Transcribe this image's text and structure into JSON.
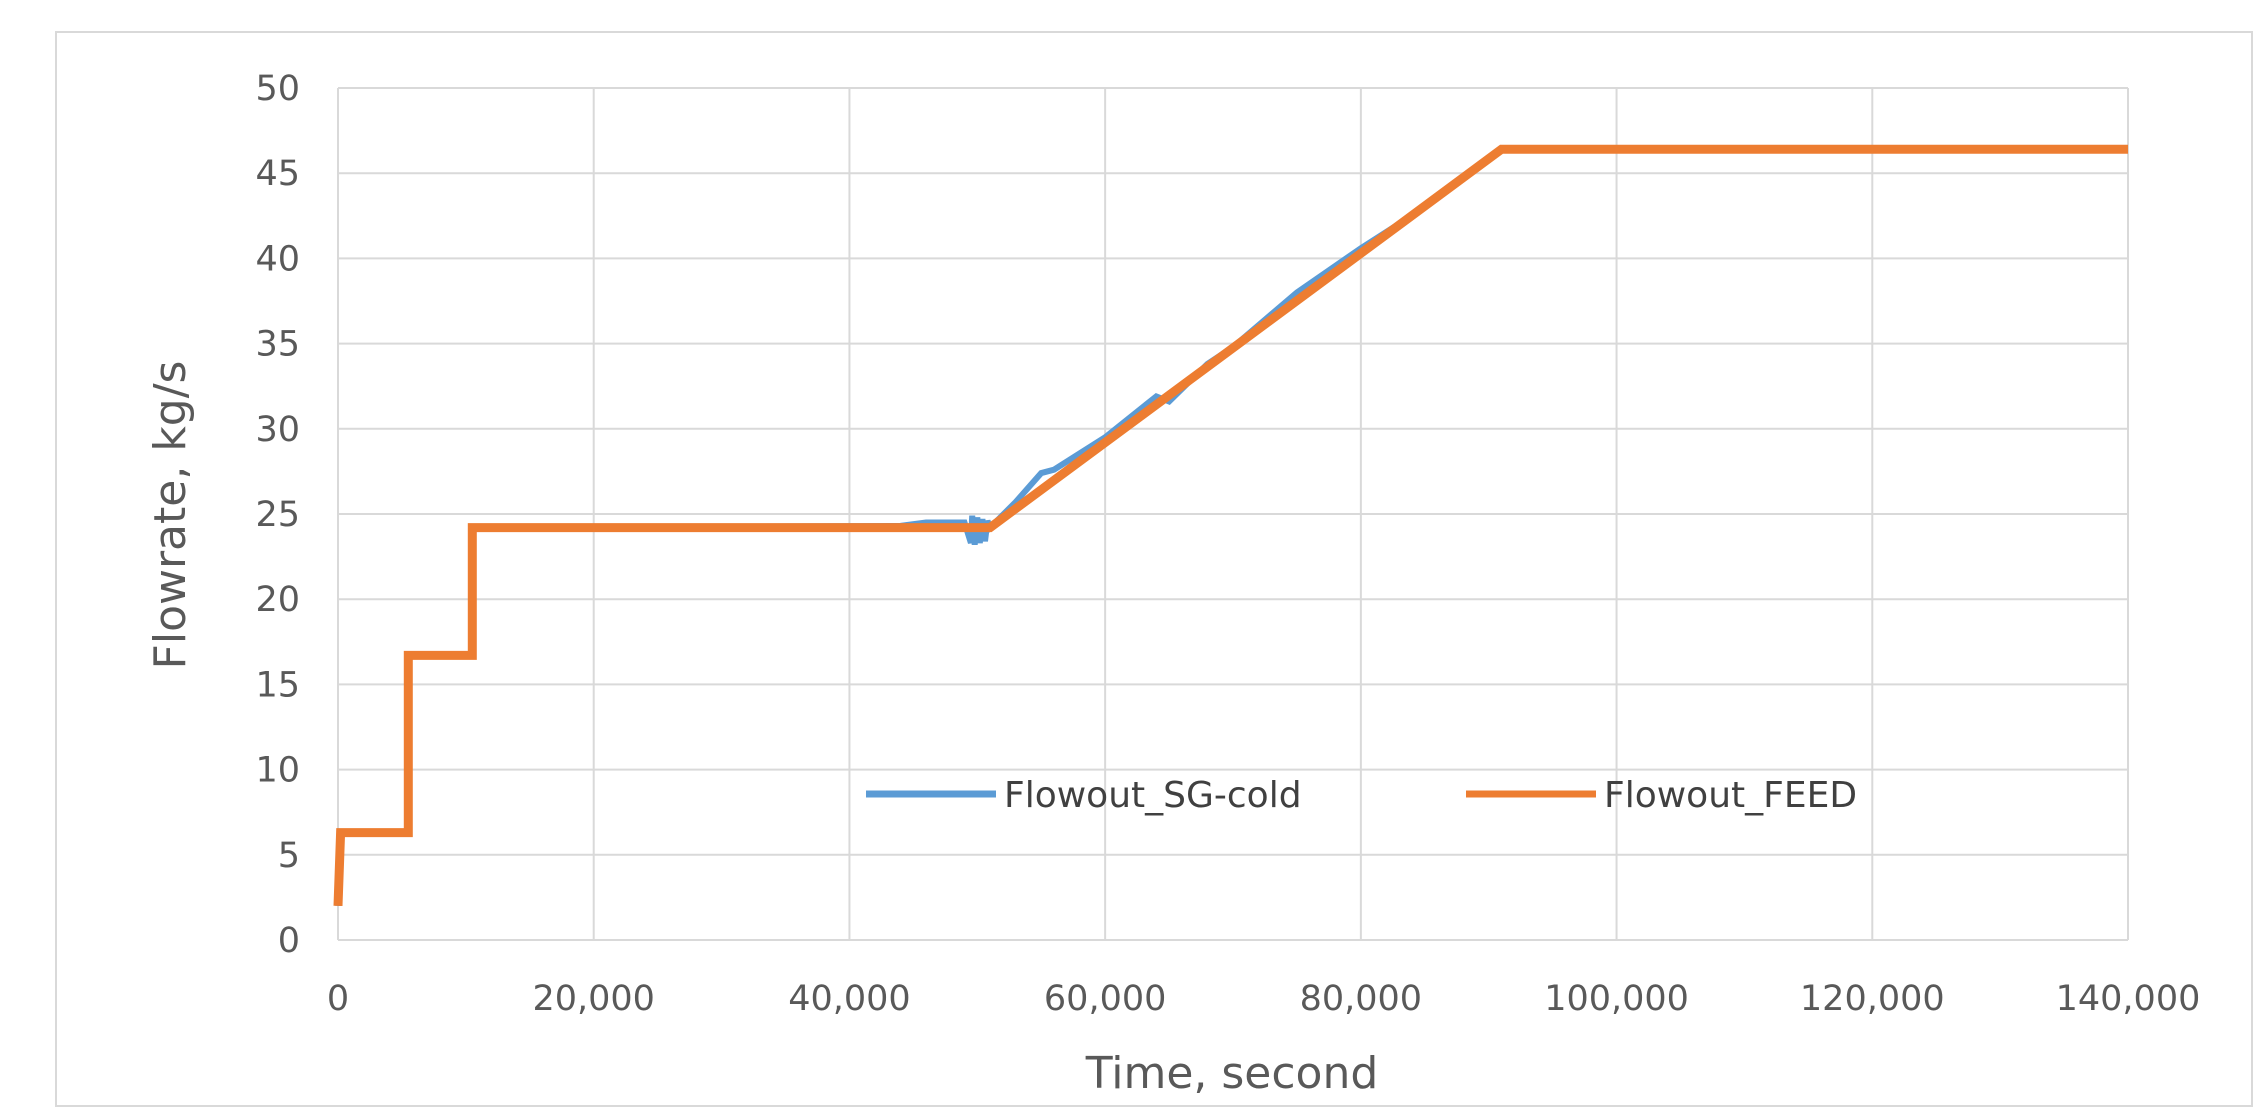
{
  "chart_data": {
    "type": "line",
    "title": "",
    "xlabel": "Time, second",
    "ylabel": "Flowrate, kg/s",
    "xlim": [
      0,
      140000
    ],
    "ylim": [
      0,
      50
    ],
    "x_ticks": [
      0,
      20000,
      40000,
      60000,
      80000,
      100000,
      120000,
      140000
    ],
    "x_tick_labels": [
      "0",
      "20,000",
      "40,000",
      "60,000",
      "80,000",
      "100,000",
      "120,000",
      "140,000"
    ],
    "y_ticks": [
      0,
      5,
      10,
      15,
      20,
      25,
      30,
      35,
      40,
      45,
      50
    ],
    "y_tick_labels": [
      "0",
      "5",
      "10",
      "15",
      "20",
      "25",
      "30",
      "35",
      "40",
      "45",
      "50"
    ],
    "grid": true,
    "legend": "inside-center",
    "series": [
      {
        "name": "Flowout_SG-cold",
        "color": "#5B9BD5",
        "x": [
          0,
          200,
          5500,
          5500,
          10500,
          10500,
          44000,
          46000,
          48000,
          49000,
          49500,
          49600,
          49800,
          50000,
          50200,
          50400,
          50600,
          50800,
          51000,
          53000,
          55000,
          56000,
          60000,
          64000,
          65000,
          68000,
          70000,
          75000,
          80000,
          85000,
          91000,
          140000
        ],
        "y": [
          2,
          6.3,
          6.3,
          16.7,
          16.7,
          24.2,
          24.3,
          24.5,
          24.5,
          24.5,
          23.3,
          24.9,
          23.2,
          24.8,
          23.3,
          24.7,
          23.4,
          24.6,
          24.2,
          25.7,
          27.4,
          27.6,
          29.5,
          31.9,
          31.6,
          33.8,
          34.8,
          38.0,
          40.6,
          43.0,
          46.4,
          46.4
        ]
      },
      {
        "name": "Flowout_FEED",
        "color": "#ED7D31",
        "x": [
          0,
          200,
          5500,
          5500,
          10500,
          10500,
          51000,
          91000,
          140000
        ],
        "y": [
          2,
          6.3,
          6.3,
          16.7,
          16.7,
          24.2,
          24.2,
          46.4,
          46.4
        ]
      }
    ]
  }
}
